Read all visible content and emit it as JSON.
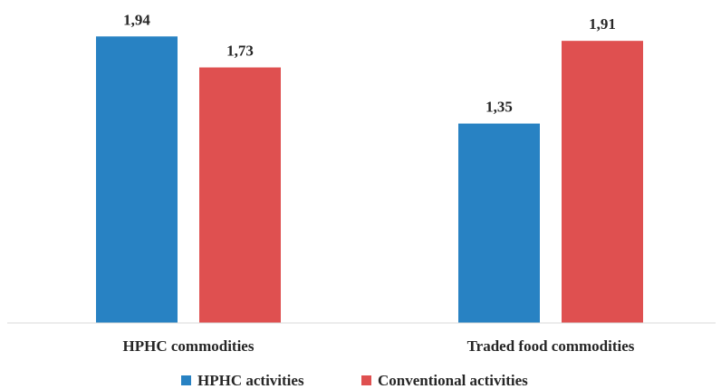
{
  "chart_data": {
    "type": "bar",
    "categories": [
      "HPHC commodities",
      "Traded food commodities"
    ],
    "series": [
      {
        "name": "HPHC activities",
        "values": [
          1.94,
          1.35
        ],
        "labels": [
          "1,94",
          "1,35"
        ],
        "color": "#2882C3"
      },
      {
        "name": "Conventional activities",
        "values": [
          1.73,
          1.91
        ],
        "labels": [
          "1,73",
          "1,91"
        ],
        "color": "#DF5050"
      }
    ],
    "ylim": [
      0,
      1.96
    ],
    "grid": false,
    "legend": "bottom",
    "axis_line_color": "#d9d9d9"
  }
}
